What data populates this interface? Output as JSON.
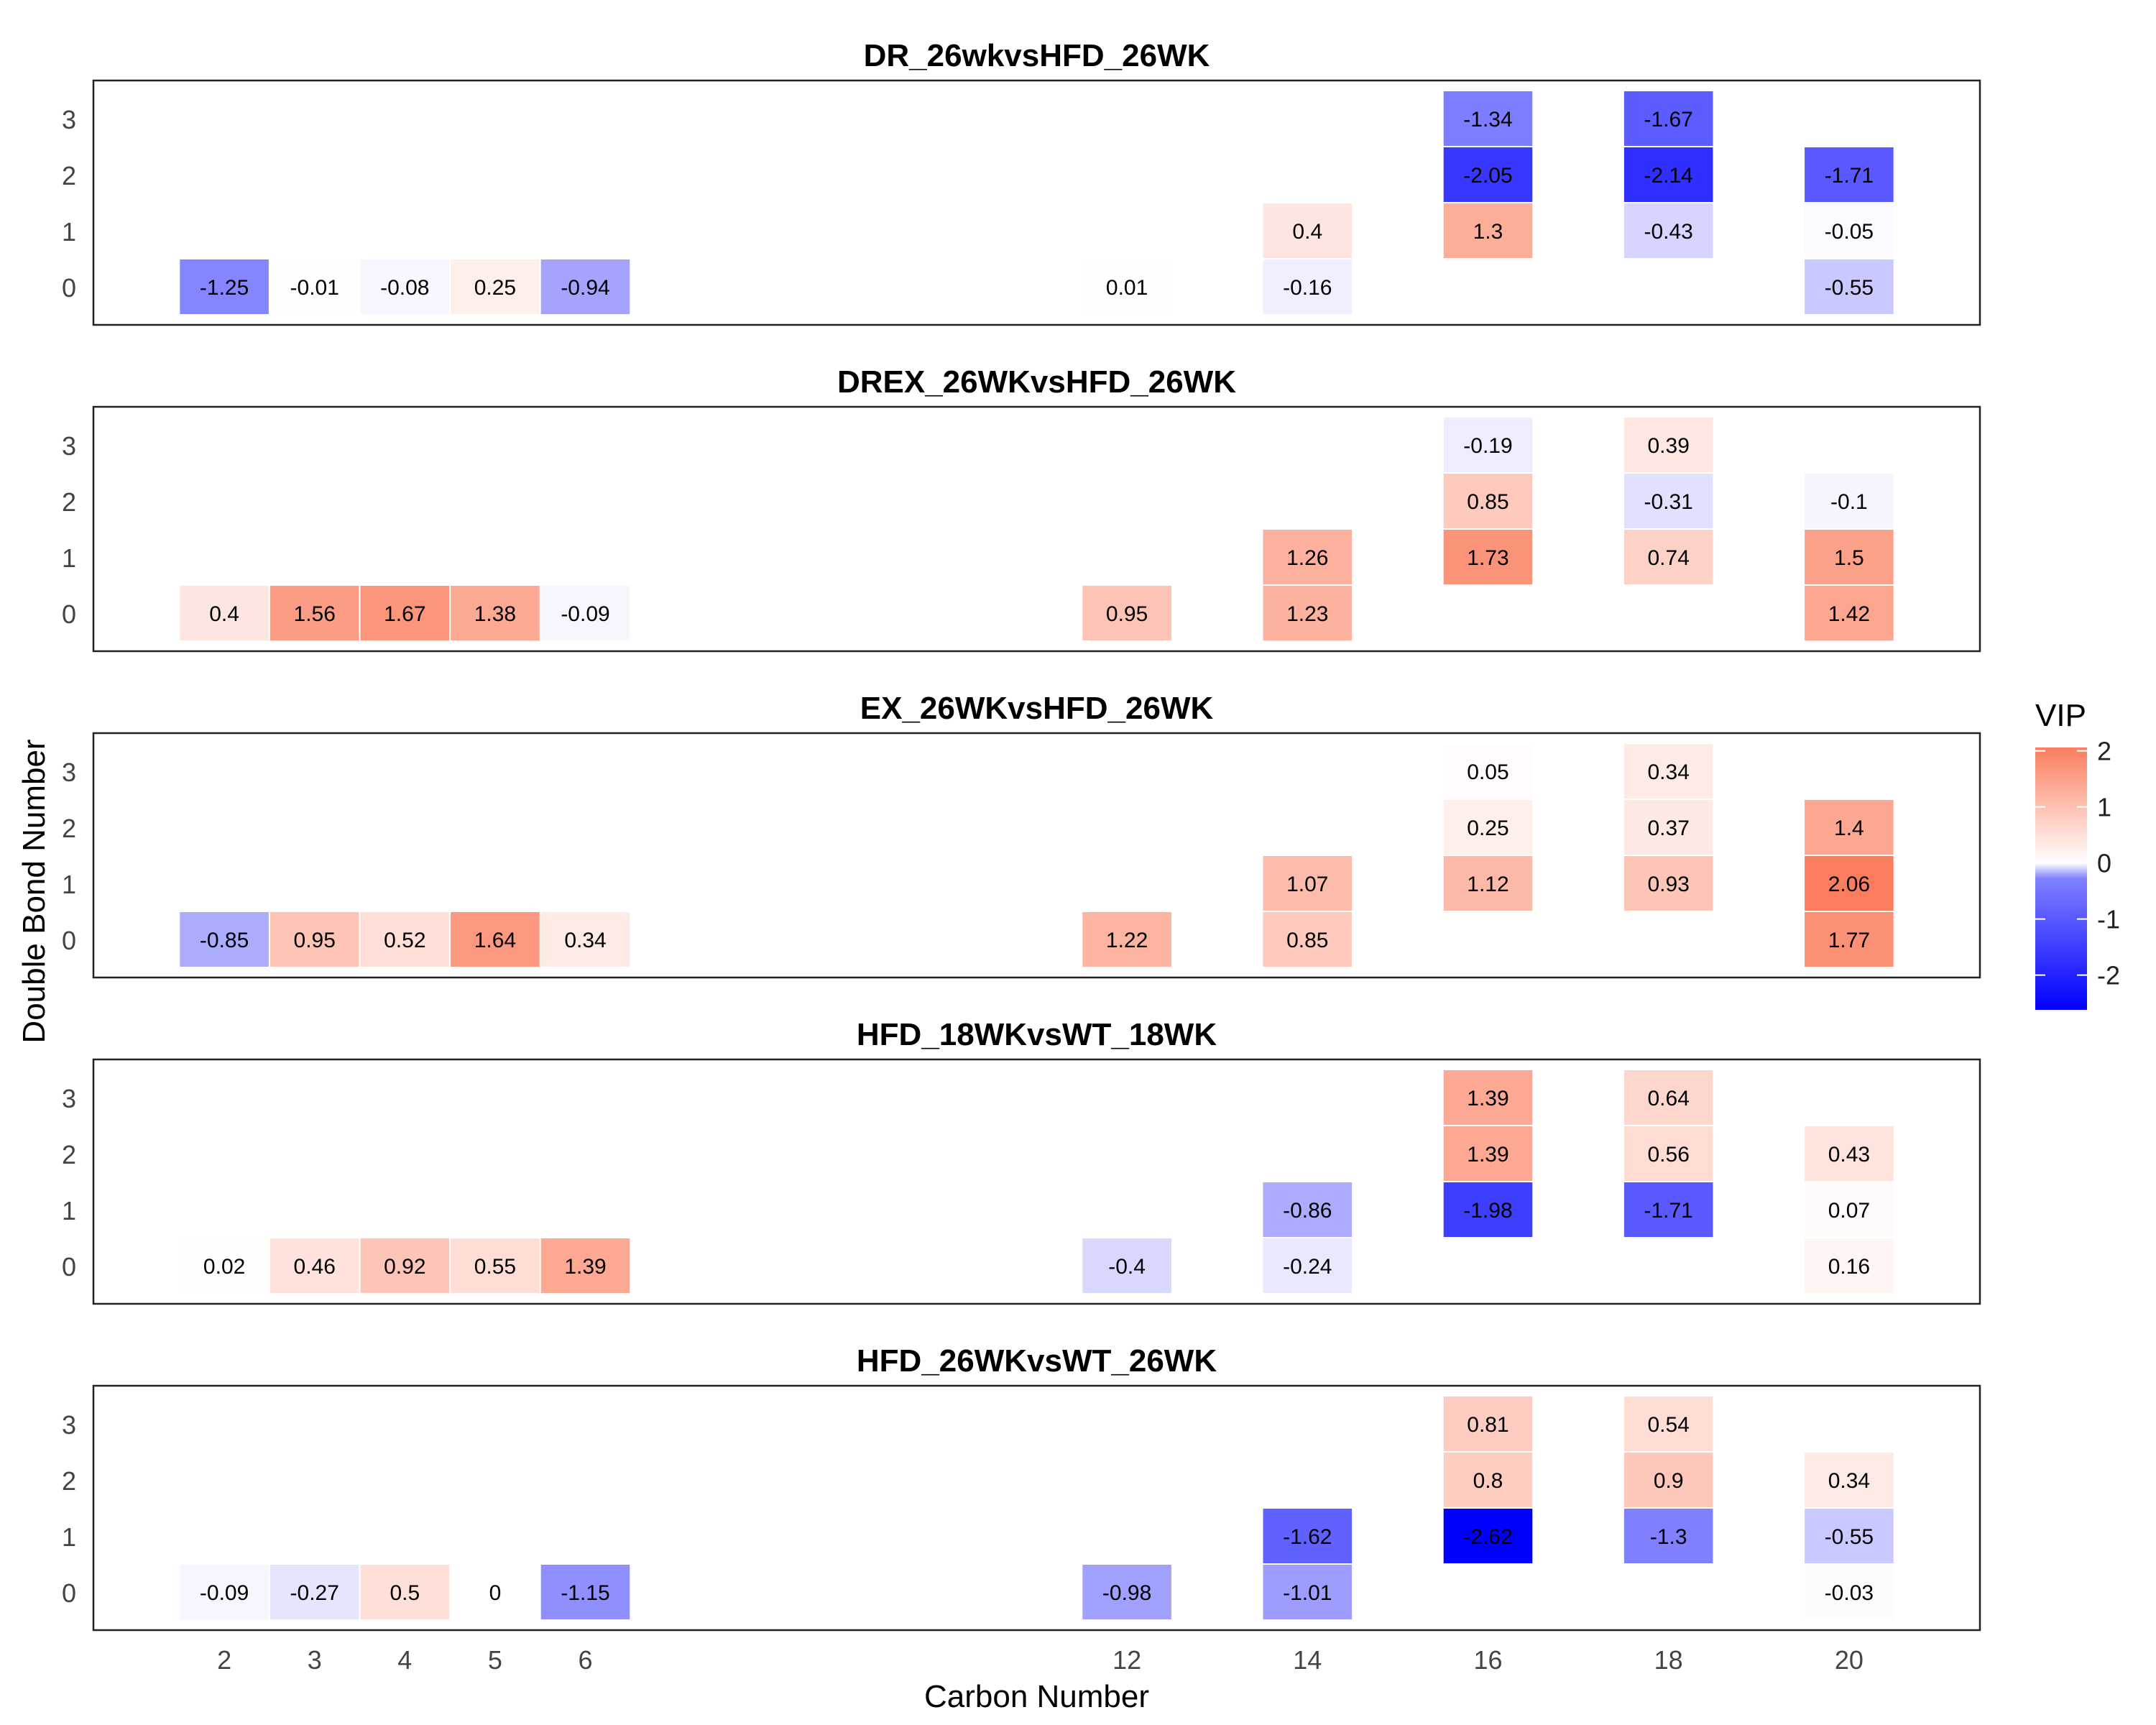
{
  "chart_data": {
    "type": "heatmap",
    "xlabel": "Carbon Number",
    "ylabel": "Double Bond Number",
    "x_ticks": [
      2,
      3,
      4,
      5,
      6,
      12,
      14,
      16,
      18,
      20
    ],
    "x_tick_labels": [
      "2",
      "3",
      "4",
      "5",
      "6",
      "12",
      "14",
      "16",
      "18",
      "20"
    ],
    "y_ticks": [
      0,
      1,
      2,
      3
    ],
    "grid": false,
    "legend": {
      "title": "VIP",
      "placement": "right",
      "ticks": [
        2,
        1,
        0,
        -1,
        -2
      ],
      "tick_labels": [
        "2",
        "1",
        "0",
        "-1",
        "-2"
      ],
      "range": [
        -2.62,
        2.06
      ],
      "colors": {
        "low": "#0000ff",
        "mid": "#ffffff",
        "high": "#fa7e5e"
      }
    },
    "panels": [
      {
        "title": "DR_26wkvsHFD_26WK",
        "cells": [
          {
            "x": 2,
            "y": 0,
            "value": -1.25,
            "label": "-1.25"
          },
          {
            "x": 3,
            "y": 0,
            "value": -0.01,
            "label": "-0.01"
          },
          {
            "x": 4,
            "y": 0,
            "value": -0.08,
            "label": "-0.08"
          },
          {
            "x": 5,
            "y": 0,
            "value": 0.25,
            "label": "0.25"
          },
          {
            "x": 6,
            "y": 0,
            "value": -0.94,
            "label": "-0.94"
          },
          {
            "x": 12,
            "y": 0,
            "value": 0.01,
            "label": "0.01"
          },
          {
            "x": 14,
            "y": 0,
            "value": -0.16,
            "label": "-0.16"
          },
          {
            "x": 14,
            "y": 1,
            "value": 0.4,
            "label": "0.4"
          },
          {
            "x": 16,
            "y": 1,
            "value": 1.3,
            "label": "1.3"
          },
          {
            "x": 16,
            "y": 2,
            "value": -2.05,
            "label": "-2.05"
          },
          {
            "x": 16,
            "y": 3,
            "value": -1.34,
            "label": "-1.34"
          },
          {
            "x": 18,
            "y": 1,
            "value": -0.43,
            "label": "-0.43"
          },
          {
            "x": 18,
            "y": 2,
            "value": -2.14,
            "label": "-2.14"
          },
          {
            "x": 18,
            "y": 3,
            "value": -1.67,
            "label": "-1.67"
          },
          {
            "x": 20,
            "y": 0,
            "value": -0.55,
            "label": "-0.55"
          },
          {
            "x": 20,
            "y": 1,
            "value": -0.05,
            "label": "-0.05"
          },
          {
            "x": 20,
            "y": 2,
            "value": -1.71,
            "label": "-1.71"
          }
        ]
      },
      {
        "title": "DREX_26WKvsHFD_26WK",
        "cells": [
          {
            "x": 2,
            "y": 0,
            "value": 0.4,
            "label": "0.4"
          },
          {
            "x": 3,
            "y": 0,
            "value": 1.56,
            "label": "1.56"
          },
          {
            "x": 4,
            "y": 0,
            "value": 1.67,
            "label": "1.67"
          },
          {
            "x": 5,
            "y": 0,
            "value": 1.38,
            "label": "1.38"
          },
          {
            "x": 6,
            "y": 0,
            "value": -0.09,
            "label": "-0.09"
          },
          {
            "x": 12,
            "y": 0,
            "value": 0.95,
            "label": "0.95"
          },
          {
            "x": 14,
            "y": 0,
            "value": 1.23,
            "label": "1.23"
          },
          {
            "x": 14,
            "y": 1,
            "value": 1.26,
            "label": "1.26"
          },
          {
            "x": 16,
            "y": 1,
            "value": 1.73,
            "label": "1.73"
          },
          {
            "x": 16,
            "y": 2,
            "value": 0.85,
            "label": "0.85"
          },
          {
            "x": 16,
            "y": 3,
            "value": -0.19,
            "label": "-0.19"
          },
          {
            "x": 18,
            "y": 1,
            "value": 0.74,
            "label": "0.74"
          },
          {
            "x": 18,
            "y": 2,
            "value": -0.31,
            "label": "-0.31"
          },
          {
            "x": 18,
            "y": 3,
            "value": 0.39,
            "label": "0.39"
          },
          {
            "x": 20,
            "y": 0,
            "value": 1.42,
            "label": "1.42"
          },
          {
            "x": 20,
            "y": 1,
            "value": 1.5,
            "label": "1.5"
          },
          {
            "x": 20,
            "y": 2,
            "value": -0.1,
            "label": "-0.1"
          }
        ]
      },
      {
        "title": "EX_26WKvsHFD_26WK",
        "cells": [
          {
            "x": 2,
            "y": 0,
            "value": -0.85,
            "label": "-0.85"
          },
          {
            "x": 3,
            "y": 0,
            "value": 0.95,
            "label": "0.95"
          },
          {
            "x": 4,
            "y": 0,
            "value": 0.52,
            "label": "0.52"
          },
          {
            "x": 5,
            "y": 0,
            "value": 1.64,
            "label": "1.64"
          },
          {
            "x": 6,
            "y": 0,
            "value": 0.34,
            "label": "0.34"
          },
          {
            "x": 12,
            "y": 0,
            "value": 1.22,
            "label": "1.22"
          },
          {
            "x": 14,
            "y": 0,
            "value": 0.85,
            "label": "0.85"
          },
          {
            "x": 14,
            "y": 1,
            "value": 1.07,
            "label": "1.07"
          },
          {
            "x": 16,
            "y": 1,
            "value": 1.12,
            "label": "1.12"
          },
          {
            "x": 16,
            "y": 2,
            "value": 0.25,
            "label": "0.25"
          },
          {
            "x": 16,
            "y": 3,
            "value": 0.05,
            "label": "0.05"
          },
          {
            "x": 18,
            "y": 1,
            "value": 0.93,
            "label": "0.93"
          },
          {
            "x": 18,
            "y": 2,
            "value": 0.37,
            "label": "0.37"
          },
          {
            "x": 18,
            "y": 3,
            "value": 0.34,
            "label": "0.34"
          },
          {
            "x": 20,
            "y": 0,
            "value": 1.77,
            "label": "1.77"
          },
          {
            "x": 20,
            "y": 1,
            "value": 2.06,
            "label": "2.06"
          },
          {
            "x": 20,
            "y": 2,
            "value": 1.4,
            "label": "1.4"
          }
        ]
      },
      {
        "title": "HFD_18WKvsWT_18WK",
        "cells": [
          {
            "x": 2,
            "y": 0,
            "value": 0.02,
            "label": "0.02"
          },
          {
            "x": 3,
            "y": 0,
            "value": 0.46,
            "label": "0.46"
          },
          {
            "x": 4,
            "y": 0,
            "value": 0.92,
            "label": "0.92"
          },
          {
            "x": 5,
            "y": 0,
            "value": 0.55,
            "label": "0.55"
          },
          {
            "x": 6,
            "y": 0,
            "value": 1.39,
            "label": "1.39"
          },
          {
            "x": 12,
            "y": 0,
            "value": -0.4,
            "label": "-0.4"
          },
          {
            "x": 14,
            "y": 0,
            "value": -0.24,
            "label": "-0.24"
          },
          {
            "x": 14,
            "y": 1,
            "value": -0.86,
            "label": "-0.86"
          },
          {
            "x": 16,
            "y": 1,
            "value": -1.98,
            "label": "-1.98"
          },
          {
            "x": 16,
            "y": 2,
            "value": 1.39,
            "label": "1.39"
          },
          {
            "x": 16,
            "y": 3,
            "value": 1.39,
            "label": "1.39"
          },
          {
            "x": 18,
            "y": 1,
            "value": -1.71,
            "label": "-1.71"
          },
          {
            "x": 18,
            "y": 2,
            "value": 0.56,
            "label": "0.56"
          },
          {
            "x": 18,
            "y": 3,
            "value": 0.64,
            "label": "0.64"
          },
          {
            "x": 20,
            "y": 0,
            "value": 0.16,
            "label": "0.16"
          },
          {
            "x": 20,
            "y": 1,
            "value": 0.07,
            "label": "0.07"
          },
          {
            "x": 20,
            "y": 2,
            "value": 0.43,
            "label": "0.43"
          }
        ]
      },
      {
        "title": "HFD_26WKvsWT_26WK",
        "cells": [
          {
            "x": 2,
            "y": 0,
            "value": -0.09,
            "label": "-0.09"
          },
          {
            "x": 3,
            "y": 0,
            "value": -0.27,
            "label": "-0.27"
          },
          {
            "x": 4,
            "y": 0,
            "value": 0.5,
            "label": "0.5"
          },
          {
            "x": 5,
            "y": 0,
            "value": 0,
            "label": "0"
          },
          {
            "x": 6,
            "y": 0,
            "value": -1.15,
            "label": "-1.15"
          },
          {
            "x": 12,
            "y": 0,
            "value": -0.98,
            "label": "-0.98"
          },
          {
            "x": 14,
            "y": 0,
            "value": -1.01,
            "label": "-1.01"
          },
          {
            "x": 14,
            "y": 1,
            "value": -1.62,
            "label": "-1.62"
          },
          {
            "x": 16,
            "y": 1,
            "value": -2.62,
            "label": "-2.62"
          },
          {
            "x": 16,
            "y": 2,
            "value": 0.8,
            "label": "0.8"
          },
          {
            "x": 16,
            "y": 3,
            "value": 0.81,
            "label": "0.81"
          },
          {
            "x": 18,
            "y": 1,
            "value": -1.3,
            "label": "-1.3"
          },
          {
            "x": 18,
            "y": 2,
            "value": 0.9,
            "label": "0.9"
          },
          {
            "x": 18,
            "y": 3,
            "value": 0.54,
            "label": "0.54"
          },
          {
            "x": 20,
            "y": 0,
            "value": -0.03,
            "label": "-0.03"
          },
          {
            "x": 20,
            "y": 1,
            "value": -0.55,
            "label": "-0.55"
          },
          {
            "x": 20,
            "y": 2,
            "value": 0.34,
            "label": "0.34"
          }
        ]
      }
    ]
  }
}
